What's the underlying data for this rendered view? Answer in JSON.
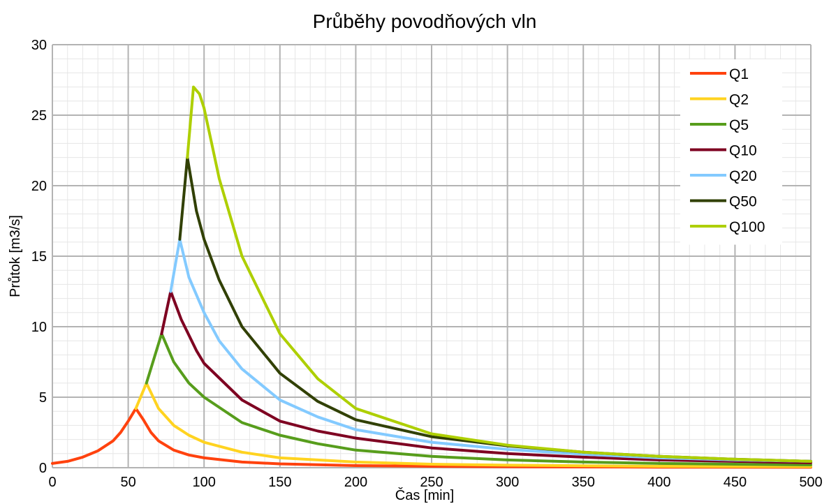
{
  "chart_data": {
    "type": "line",
    "title": "Průběhy povodňových vln",
    "xlabel": "Čas [min]",
    "ylabel": "Průtok [m3/s]",
    "xlim": [
      0,
      500
    ],
    "ylim": [
      0,
      30
    ],
    "xticks": [
      "0",
      "50",
      "100",
      "150",
      "200",
      "250",
      "300",
      "350",
      "400",
      "450",
      "500"
    ],
    "yticks": [
      "0",
      "5",
      "10",
      "15",
      "20",
      "25",
      "30"
    ],
    "grid": true,
    "legend_position": "top-right",
    "series": [
      {
        "name": "Q1",
        "color": "#ff420e",
        "points": [
          [
            0,
            0.3
          ],
          [
            10,
            0.45
          ],
          [
            20,
            0.75
          ],
          [
            30,
            1.2
          ],
          [
            40,
            1.9
          ],
          [
            45,
            2.5
          ],
          [
            50,
            3.3
          ],
          [
            55,
            4.2
          ],
          [
            60,
            3.4
          ],
          [
            65,
            2.5
          ],
          [
            70,
            1.9
          ],
          [
            80,
            1.25
          ],
          [
            90,
            0.9
          ],
          [
            100,
            0.7
          ],
          [
            125,
            0.4
          ],
          [
            150,
            0.27
          ],
          [
            200,
            0.15
          ],
          [
            250,
            0.1
          ],
          [
            300,
            0.07
          ],
          [
            400,
            0.04
          ],
          [
            500,
            0.03
          ]
        ]
      },
      {
        "name": "Q2",
        "color": "#ffd320",
        "points": [
          [
            55,
            4.2
          ],
          [
            62,
            6.0
          ],
          [
            70,
            4.2
          ],
          [
            80,
            3.0
          ],
          [
            90,
            2.3
          ],
          [
            100,
            1.8
          ],
          [
            125,
            1.1
          ],
          [
            150,
            0.7
          ],
          [
            200,
            0.4
          ],
          [
            250,
            0.25
          ],
          [
            300,
            0.18
          ],
          [
            400,
            0.1
          ],
          [
            500,
            0.08
          ]
        ]
      },
      {
        "name": "Q5",
        "color": "#579d1c",
        "points": [
          [
            62,
            6.0
          ],
          [
            72,
            9.5
          ],
          [
            80,
            7.5
          ],
          [
            90,
            6.0
          ],
          [
            100,
            5.0
          ],
          [
            125,
            3.2
          ],
          [
            150,
            2.3
          ],
          [
            175,
            1.7
          ],
          [
            200,
            1.25
          ],
          [
            250,
            0.8
          ],
          [
            300,
            0.55
          ],
          [
            350,
            0.4
          ],
          [
            400,
            0.3
          ],
          [
            450,
            0.25
          ],
          [
            500,
            0.2
          ]
        ]
      },
      {
        "name": "Q10",
        "color": "#7e0021",
        "points": [
          [
            72,
            9.5
          ],
          [
            78,
            12.5
          ],
          [
            85,
            10.5
          ],
          [
            95,
            8.3
          ],
          [
            100,
            7.4
          ],
          [
            125,
            4.8
          ],
          [
            150,
            3.3
          ],
          [
            175,
            2.6
          ],
          [
            200,
            2.1
          ],
          [
            250,
            1.4
          ],
          [
            300,
            1.0
          ],
          [
            350,
            0.75
          ],
          [
            400,
            0.55
          ],
          [
            450,
            0.45
          ],
          [
            500,
            0.35
          ]
        ]
      },
      {
        "name": "Q20",
        "color": "#83caff",
        "points": [
          [
            78,
            12.5
          ],
          [
            84,
            16.2
          ],
          [
            90,
            13.5
          ],
          [
            100,
            11.0
          ],
          [
            110,
            9.0
          ],
          [
            125,
            7.0
          ],
          [
            150,
            4.8
          ],
          [
            175,
            3.6
          ],
          [
            200,
            2.7
          ],
          [
            250,
            1.8
          ],
          [
            300,
            1.3
          ],
          [
            350,
            0.95
          ],
          [
            400,
            0.7
          ],
          [
            450,
            0.55
          ],
          [
            500,
            0.45
          ]
        ]
      },
      {
        "name": "Q50",
        "color": "#314004",
        "points": [
          [
            84,
            16.2
          ],
          [
            89,
            22.0
          ],
          [
            95,
            18.2
          ],
          [
            100,
            16.2
          ],
          [
            110,
            13.3
          ],
          [
            125,
            10.0
          ],
          [
            150,
            6.7
          ],
          [
            175,
            4.7
          ],
          [
            200,
            3.4
          ],
          [
            250,
            2.2
          ],
          [
            300,
            1.55
          ],
          [
            350,
            1.1
          ],
          [
            400,
            0.8
          ],
          [
            450,
            0.6
          ],
          [
            500,
            0.45
          ]
        ]
      },
      {
        "name": "Q100",
        "color": "#aecf00",
        "points": [
          [
            89,
            22.0
          ],
          [
            93,
            27.0
          ],
          [
            97,
            26.5
          ],
          [
            100,
            25.5
          ],
          [
            105,
            23.0
          ],
          [
            110,
            20.5
          ],
          [
            125,
            15.0
          ],
          [
            150,
            9.5
          ],
          [
            175,
            6.3
          ],
          [
            200,
            4.2
          ],
          [
            250,
            2.4
          ],
          [
            300,
            1.6
          ],
          [
            350,
            1.1
          ],
          [
            400,
            0.8
          ],
          [
            450,
            0.6
          ],
          [
            500,
            0.45
          ]
        ]
      }
    ]
  }
}
